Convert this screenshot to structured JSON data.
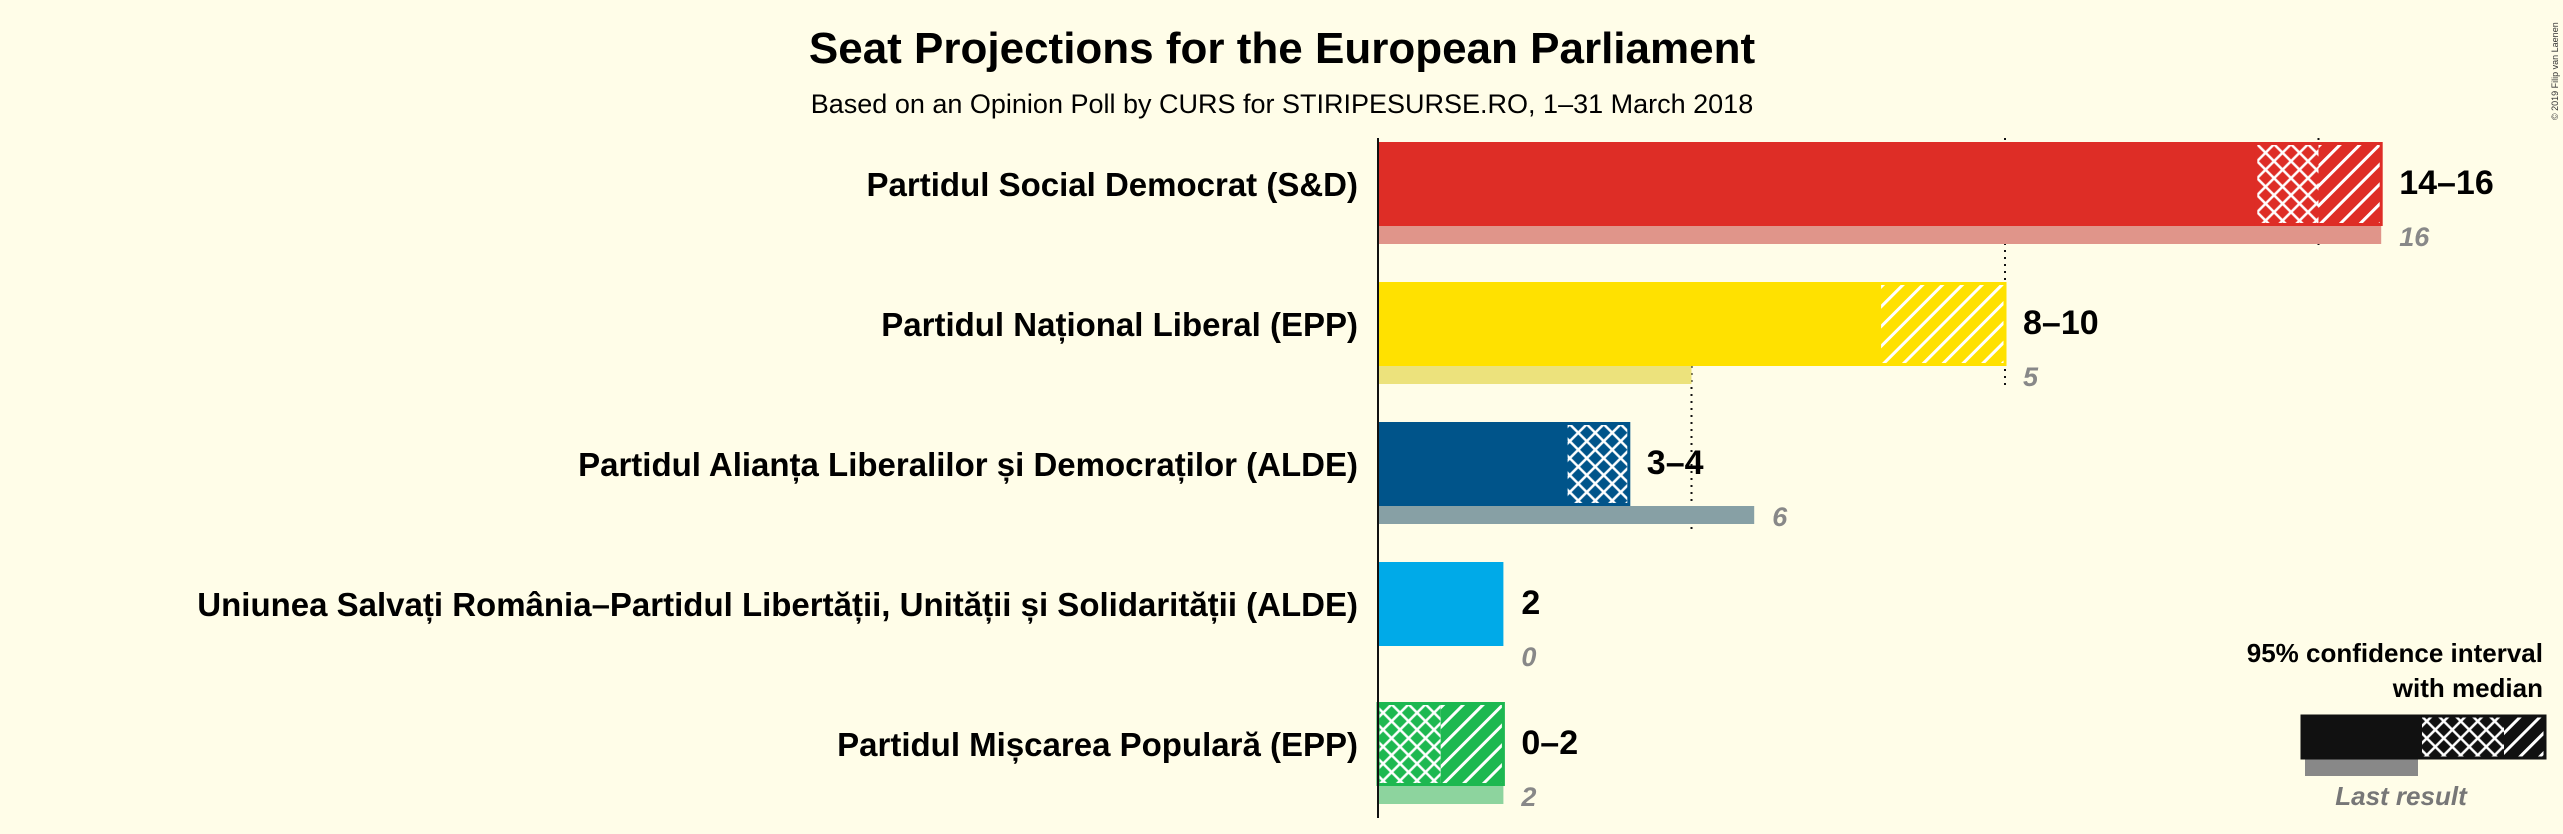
{
  "chart_data": {
    "type": "bar",
    "title": "Seat Projections for the European Parliament",
    "subtitle": "Based on an Opinion Poll by CURS for STIRIPESURSE.RO, 1–31 March 2018",
    "x_range": [
      0,
      16
    ],
    "gridlines": [
      5,
      10,
      15
    ],
    "parties": [
      {
        "name": "Partidul Social Democrat (S&D)",
        "low": 14,
        "median": 15,
        "high": 16,
        "range_label": "14–16",
        "last": 16,
        "last_label": "16",
        "color": "#de2d26",
        "last_color": "#e0958a"
      },
      {
        "name": "Partidul Național Liberal (EPP)",
        "low": 8,
        "median": 8,
        "high": 10,
        "range_label": "8–10",
        "last": 5,
        "last_label": "5",
        "color": "#ffe100",
        "last_color": "#ece27c"
      },
      {
        "name": "Partidul Alianța Liberalilor și Democraților (ALDE)",
        "low": 3,
        "median": 4,
        "high": 4,
        "range_label": "3–4",
        "last": 6,
        "last_label": "6",
        "color": "#00548a",
        "last_color": "#87a0a5"
      },
      {
        "name": "Uniunea Salvați România–Partidul Libertății, Unității și Solidarității (ALDE)",
        "low": 2,
        "median": 2,
        "high": 2,
        "range_label": "2",
        "last": 0,
        "last_label": "0",
        "color": "#00aae8",
        "last_color": "#8fd0ee"
      },
      {
        "name": "Partidul Mișcarea Populară (EPP)",
        "low": 0,
        "median": 1,
        "high": 2,
        "range_label": "0–2",
        "last": 2,
        "last_label": "2",
        "color": "#1db850",
        "last_color": "#8dd49e"
      }
    ]
  },
  "legend": {
    "line1": "95% confidence interval",
    "line2": "with median",
    "last_result": "Last result"
  },
  "copyright": "© 2019 Filip van Laenen"
}
